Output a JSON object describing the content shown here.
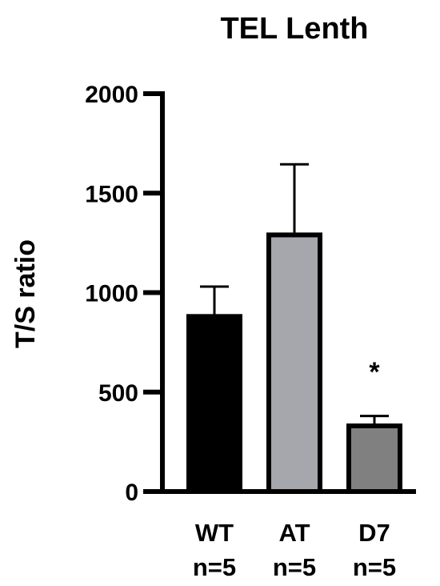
{
  "chart_data": {
    "type": "bar",
    "title": "TEL Lenth",
    "ylabel": "T/S ratio",
    "xlabel": "",
    "ylim": [
      0,
      2000
    ],
    "yticks": [
      0,
      500,
      1000,
      1500,
      2000
    ],
    "categories": [
      "WT",
      "AT",
      "D7"
    ],
    "sublabels": [
      "n=5",
      "n=5",
      "n=5"
    ],
    "values": [
      880,
      1290,
      330
    ],
    "errors": [
      150,
      355,
      50
    ],
    "colors": [
      "#000000",
      "#a6a6ad",
      "#808080"
    ],
    "error_bar_direction": "up",
    "annotations": [
      {
        "category": "D7",
        "text": "*"
      }
    ],
    "grid": false,
    "legend": "none"
  }
}
